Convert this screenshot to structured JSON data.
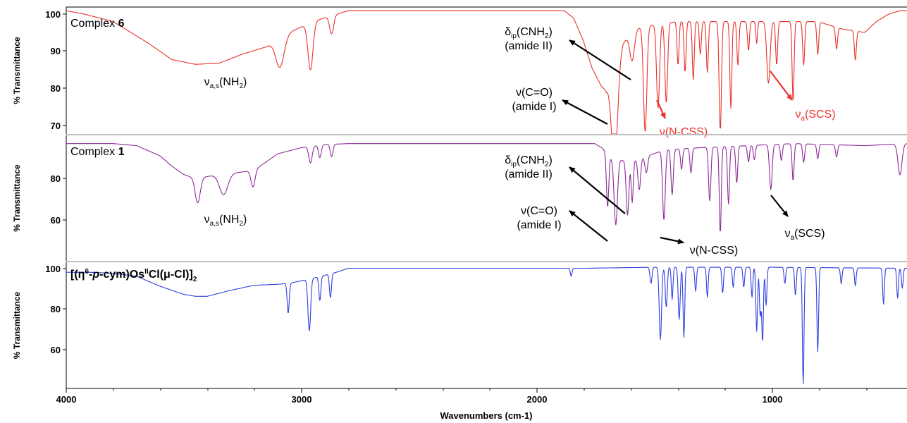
{
  "chart_data": {
    "type": "line",
    "xlabel": "Wavenumbers (cm-1)",
    "xlim": [
      4000,
      420
    ],
    "x_ticks": [
      "4000",
      "3000",
      "2000",
      "1000"
    ],
    "panels": [
      {
        "name_main": "Complex ",
        "name_bold": "6",
        "ylabel": "% Transmittance",
        "ylim": [
          66,
          101
        ],
        "y_ticks": [
          "100",
          "90",
          "80",
          "70"
        ],
        "color": "#e8322c",
        "label_color": "#000000",
        "baseline": 100,
        "background": [
          [
            4000,
            100
          ],
          [
            3920,
            99
          ],
          [
            3800,
            97
          ],
          [
            3650,
            91
          ],
          [
            3550,
            86.5
          ],
          [
            3450,
            85.2
          ],
          [
            3350,
            85.5
          ],
          [
            3250,
            88
          ],
          [
            3150,
            90
          ],
          [
            3050,
            94
          ],
          [
            2950,
            97
          ],
          [
            2850,
            99
          ],
          [
            2800,
            100
          ],
          [
            1880,
            100
          ],
          [
            1840,
            98
          ],
          [
            1800,
            92
          ],
          [
            1760,
            84
          ],
          [
            1720,
            79
          ],
          [
            1700,
            78
          ],
          [
            1690,
            80
          ],
          [
            1660,
            86
          ],
          [
            1630,
            91
          ],
          [
            1580,
            95
          ],
          [
            1500,
            96
          ],
          [
            1400,
            97
          ],
          [
            1200,
            97
          ],
          [
            1000,
            97
          ],
          [
            800,
            97
          ],
          [
            700,
            95
          ],
          [
            600,
            94
          ],
          [
            550,
            97
          ],
          [
            500,
            99
          ],
          [
            450,
            100
          ],
          [
            420,
            100
          ]
        ],
        "peaks": [
          [
            3090,
            8,
            25
          ],
          [
            2960,
            13,
            15
          ],
          [
            2870,
            5,
            12
          ],
          [
            1665,
            28,
            18
          ],
          [
            1590,
            8,
            14
          ],
          [
            1535,
            29,
            10
          ],
          [
            1480,
            23,
            9
          ],
          [
            1445,
            22,
            8
          ],
          [
            1395,
            12,
            6
          ],
          [
            1365,
            14,
            6
          ],
          [
            1330,
            16,
            6
          ],
          [
            1300,
            9,
            6
          ],
          [
            1270,
            14,
            6
          ],
          [
            1215,
            30,
            7
          ],
          [
            1170,
            24,
            6
          ],
          [
            1140,
            12,
            6
          ],
          [
            1095,
            8,
            6
          ],
          [
            1060,
            6,
            5
          ],
          [
            1010,
            17,
            10
          ],
          [
            975,
            12,
            6
          ],
          [
            905,
            22,
            6
          ],
          [
            860,
            12,
            6
          ],
          [
            800,
            9,
            6
          ],
          [
            720,
            6,
            6
          ],
          [
            640,
            8,
            6
          ]
        ],
        "annotations": [
          {
            "text": "δ",
            "sub": "ip",
            "after": "(CNH",
            "sub2": "2",
            "tail": ")",
            "line2": "(amide II)",
            "color": "#000000",
            "arrow": true
          },
          {
            "text": "ν(C=O)",
            "line2": "(amide I)",
            "color": "#000000",
            "arrow": true
          },
          {
            "text": "ν",
            "sub": "a,s",
            "after": "(NH",
            "sub2": "2",
            "tail": ")",
            "color": "#000000",
            "arrow": false
          },
          {
            "text": "ν(N-CSS)",
            "color": "#e8322c",
            "arrow": true
          },
          {
            "text": "ν",
            "sub": "a",
            "after": "(SCS)",
            "color": "#e8322c",
            "arrow": true
          }
        ]
      },
      {
        "name_main": "Complex ",
        "name_bold": "1",
        "ylabel": "% Transmittance",
        "ylim": [
          40,
          101
        ],
        "y_ticks": [
          "80",
          "60"
        ],
        "color": "#8b2c96",
        "label_color": "#000000",
        "baseline": 97,
        "background": [
          [
            4000,
            97
          ],
          [
            3800,
            97
          ],
          [
            3700,
            96
          ],
          [
            3600,
            91
          ],
          [
            3550,
            86
          ],
          [
            3500,
            82
          ],
          [
            3450,
            80
          ],
          [
            3400,
            81
          ],
          [
            3350,
            82
          ],
          [
            3300,
            82.5
          ],
          [
            3200,
            84
          ],
          [
            3100,
            92
          ],
          [
            3000,
            95
          ],
          [
            2900,
            96.5
          ],
          [
            2800,
            97
          ],
          [
            1750,
            97
          ],
          [
            1720,
            95
          ],
          [
            1700,
            93
          ],
          [
            1680,
            90
          ],
          [
            1600,
            88
          ],
          [
            1550,
            90
          ],
          [
            1450,
            94
          ],
          [
            1300,
            95
          ],
          [
            1100,
            96
          ],
          [
            900,
            97
          ],
          [
            600,
            96
          ],
          [
            420,
            97
          ]
        ],
        "peaks": [
          [
            3440,
            12,
            15
          ],
          [
            3330,
            10,
            25
          ],
          [
            3205,
            8,
            12
          ],
          [
            2960,
            8,
            10
          ],
          [
            2920,
            6,
            8
          ],
          [
            2870,
            6,
            8
          ],
          [
            1695,
            26,
            7
          ],
          [
            1660,
            32,
            10
          ],
          [
            1610,
            26,
            8
          ],
          [
            1590,
            20,
            6
          ],
          [
            1560,
            15,
            8
          ],
          [
            1530,
            8,
            8
          ],
          [
            1455,
            34,
            8
          ],
          [
            1420,
            22,
            7
          ],
          [
            1380,
            10,
            6
          ],
          [
            1340,
            12,
            6
          ],
          [
            1260,
            26,
            7
          ],
          [
            1215,
            42,
            6
          ],
          [
            1180,
            28,
            6
          ],
          [
            1145,
            18,
            6
          ],
          [
            1095,
            8,
            6
          ],
          [
            1070,
            7,
            6
          ],
          [
            1000,
            22,
            8
          ],
          [
            955,
            8,
            6
          ],
          [
            905,
            18,
            6
          ],
          [
            860,
            9,
            6
          ],
          [
            800,
            7,
            6
          ],
          [
            720,
            6,
            6
          ],
          [
            450,
            15,
            12
          ]
        ],
        "annotations": [
          {
            "text": "δ",
            "sub": "ip",
            "after": "(CNH",
            "sub2": "2",
            "tail": ")",
            "line2": "(amide II)",
            "color": "#000000",
            "arrow": true
          },
          {
            "text": "ν(C=O)",
            "line2": "(amide I)",
            "color": "#000000",
            "arrow": true
          },
          {
            "text": "ν",
            "sub": "a,s",
            "after": "(NH",
            "sub2": "2",
            "tail": ")",
            "color": "#000000",
            "arrow": false
          },
          {
            "text": "ν(N-CSS)",
            "color": "#000000",
            "arrow": true
          },
          {
            "text": "ν",
            "sub": "a",
            "after": "(SCS)",
            "color": "#000000",
            "arrow": true
          }
        ]
      },
      {
        "name_rich": "[(η6-p-cym)OsIICl(μ-Cl)]2",
        "ylabel": "% Transmittance",
        "ylim": [
          40,
          103
        ],
        "y_ticks": [
          "100",
          "80",
          "60"
        ],
        "color": "#2f3fe0",
        "baseline": 101,
        "background": [
          [
            4000,
            98
          ],
          [
            3900,
            98
          ],
          [
            3800,
            97.5
          ],
          [
            3700,
            96
          ],
          [
            3600,
            91
          ],
          [
            3500,
            87
          ],
          [
            3450,
            86
          ],
          [
            3400,
            86
          ],
          [
            3300,
            89
          ],
          [
            3200,
            91.5
          ],
          [
            3100,
            92
          ],
          [
            3050,
            92.5
          ],
          [
            2950,
            95
          ],
          [
            2850,
            98
          ],
          [
            2800,
            100
          ],
          [
            1800,
            100
          ],
          [
            1500,
            100.5
          ],
          [
            1200,
            100.5
          ],
          [
            1000,
            100.5
          ],
          [
            420,
            100
          ]
        ],
        "peaks": [
          [
            3055,
            15,
            6
          ],
          [
            2965,
            26,
            8
          ],
          [
            2920,
            12,
            6
          ],
          [
            2875,
            12,
            6
          ],
          [
            1850,
            4,
            5
          ],
          [
            1510,
            8,
            6
          ],
          [
            1470,
            36,
            7
          ],
          [
            1445,
            20,
            6
          ],
          [
            1420,
            16,
            5
          ],
          [
            1390,
            26,
            6
          ],
          [
            1370,
            35,
            5
          ],
          [
            1320,
            12,
            5
          ],
          [
            1270,
            15,
            5
          ],
          [
            1205,
            13,
            5
          ],
          [
            1160,
            10,
            5
          ],
          [
            1115,
            10,
            5
          ],
          [
            1080,
            15,
            5
          ],
          [
            1060,
            32,
            5
          ],
          [
            1045,
            24,
            5
          ],
          [
            1035,
            37,
            5
          ],
          [
            1020,
            19,
            5
          ],
          [
            940,
            8,
            5
          ],
          [
            895,
            14,
            5
          ],
          [
            862,
            58,
            5
          ],
          [
            800,
            42,
            5
          ],
          [
            700,
            8,
            5
          ],
          [
            640,
            9,
            5
          ],
          [
            520,
            18,
            5
          ],
          [
            460,
            15,
            5
          ],
          [
            440,
            10,
            5
          ]
        ]
      }
    ]
  }
}
